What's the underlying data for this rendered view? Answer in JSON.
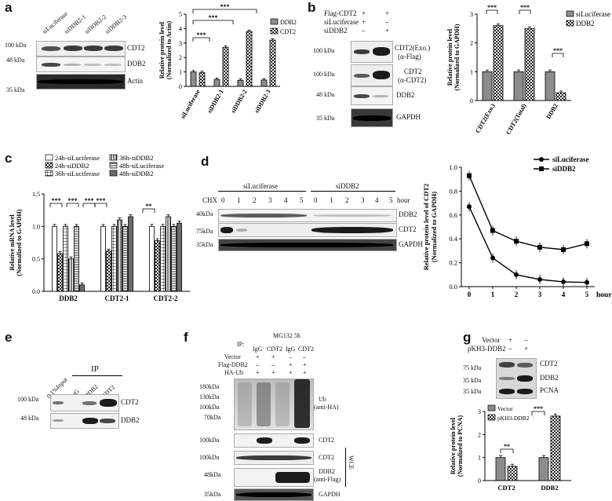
{
  "panel_labels": {
    "a": "a",
    "b": "b",
    "c": "c",
    "d": "d",
    "e": "e",
    "f": "f",
    "g": "g"
  },
  "sig": {
    "p3": "***",
    "p2": "**"
  },
  "a": {
    "lanes": [
      "siLuciferase",
      "siDDB2-1",
      "siDDB2-2",
      "siDDB2-3"
    ],
    "mw": [
      "100 kDa",
      "48 kDa",
      "35 kDa"
    ],
    "bands": [
      "CDT2",
      "DDB2",
      "Actin"
    ],
    "chart_data": {
      "type": "bar",
      "categories": [
        "siLuciferase",
        "siDDB2-1",
        "siDDB2-2",
        "siDDB2-3"
      ],
      "series": [
        {
          "name": "DDB2",
          "values": [
            1.0,
            0.48,
            0.42,
            0.44
          ]
        },
        {
          "name": "CDT2",
          "values": [
            0.95,
            2.7,
            3.8,
            3.2
          ]
        }
      ],
      "ylabel": "Relative protein level (Normalized to Actin)",
      "ylim": [
        0,
        5
      ],
      "yticks": [
        0,
        1,
        2,
        3,
        4,
        5
      ],
      "legend": "top-right"
    }
  },
  "b": {
    "rows": [
      "Flag-CDT2",
      "siLuciferase",
      "siDDB2"
    ],
    "signs": [
      [
        "+",
        "+"
      ],
      [
        "+",
        "–"
      ],
      [
        "–",
        "+"
      ]
    ],
    "mw": [
      "100 kDa",
      "100 kDa",
      "48 kDa",
      "35 kDa"
    ],
    "bands": [
      "CDT2(Exo.)",
      "(α-Flag)",
      "CDT2",
      "(α-CDT2)",
      "DDB2",
      "GAPDH"
    ],
    "chart_data": {
      "type": "bar",
      "categories": [
        "CDT2(Exo.)",
        "CDT2(Total)",
        "DDB2"
      ],
      "series": [
        {
          "name": "siLuciferase",
          "values": [
            1.0,
            1.0,
            1.0
          ]
        },
        {
          "name": "DDB2",
          "values": [
            2.6,
            2.5,
            0.27
          ]
        }
      ],
      "ylabel": "Relative protein level (Normalized to GAPDH)",
      "ylim": [
        0,
        3
      ],
      "yticks": [
        0,
        1,
        2,
        3
      ],
      "legend": "top-right"
    }
  },
  "c": {
    "chart_data": {
      "type": "bar",
      "categories": [
        "DDB2",
        "CDT2-1",
        "CDT2-2"
      ],
      "series": [
        {
          "name": "24h-siLuciferase",
          "values": [
            1.0,
            1.0,
            1.0
          ]
        },
        {
          "name": "24h-siDDB2",
          "values": [
            0.58,
            0.62,
            0.78
          ]
        },
        {
          "name": "36h-siLuciferase",
          "values": [
            1.0,
            1.0,
            1.0
          ]
        },
        {
          "name": "36h-siDDB2",
          "values": [
            0.5,
            1.1,
            1.15
          ]
        },
        {
          "name": "48h-siLuciferase",
          "values": [
            1.0,
            1.0,
            1.0
          ]
        },
        {
          "name": "48h-siDDB2",
          "values": [
            0.1,
            1.15,
            1.05
          ]
        }
      ],
      "ylabel": "Relative mRNA level (Normalized to GAPDH)",
      "ylim": [
        0,
        1.5
      ],
      "yticks": [
        "0.0",
        "0.5",
        "1.0",
        "1.5"
      ],
      "legend": "top"
    }
  },
  "d": {
    "cond": [
      "siLuciferase",
      "siDDB2"
    ],
    "chx": "CHX",
    "times": [
      "0",
      "1",
      "2",
      "3",
      "4",
      "5"
    ],
    "hour": "hour",
    "mw": [
      "40kDa",
      "75kDa",
      "35kDa"
    ],
    "bands": [
      "DDB2",
      "CDT2",
      "GAPDH"
    ],
    "chart_data": {
      "type": "line",
      "x": [
        0,
        1,
        2,
        3,
        4,
        5
      ],
      "series": [
        {
          "name": "siLuciferase",
          "values": [
            0.67,
            0.24,
            0.1,
            0.06,
            0.04,
            0.035
          ]
        },
        {
          "name": "siDDB2",
          "values": [
            0.93,
            0.47,
            0.38,
            0.33,
            0.31,
            0.36
          ]
        }
      ],
      "xlabel": "hours",
      "ylabel": "Relative protein level of CDT2 (Normalized to GAPDH)",
      "ylim": [
        0.0,
        1.0
      ],
      "yticks": [
        "0.0",
        "0.2",
        "0.4",
        "0.6",
        "0.8",
        "1.0"
      ],
      "legend": "top-right"
    }
  },
  "e": {
    "ip": "IP",
    "lanes": [
      "0.1%Input",
      "IgG",
      "DDB2",
      "CDT2"
    ],
    "mw": [
      "100 kDa",
      "48 kDa"
    ],
    "bands": [
      "CDT2",
      "DDB2"
    ]
  },
  "f": {
    "title": "MG132 5h",
    "ip": "IP:",
    "ip_lanes": [
      "IgG",
      "CDT2",
      "IgG",
      "CDT2"
    ],
    "rows": [
      "Vector",
      "Flag-DDB2",
      "HA-Ub"
    ],
    "signs": [
      [
        "+",
        "+",
        "–",
        "–"
      ],
      [
        "–",
        "–",
        "+",
        "+"
      ],
      [
        "+",
        "+",
        "+",
        "+"
      ]
    ],
    "mw": [
      "180kDa",
      "130kDa",
      "100kDa",
      "70kDa",
      "100kDa",
      "100kDa",
      "48kDa",
      "35kDa"
    ],
    "ub": "Ub",
    "ub2": "(anti-HA)",
    "bands": [
      "CDT2",
      "CDT2",
      "DDB2",
      "(anti-Flag)",
      "GAPDH"
    ],
    "wce": "WCE"
  },
  "g": {
    "rows": [
      "Vector",
      "pKH3-DDB2"
    ],
    "signs": [
      [
        "+",
        "–"
      ],
      [
        "–",
        "+"
      ]
    ],
    "mw": [
      "75 kDa",
      "35 kDa",
      "35 kDa"
    ],
    "bands": [
      "CDT2",
      "DDB2",
      "PCNA"
    ],
    "chart_data": {
      "type": "bar",
      "categories": [
        "CDT2",
        "DDB2"
      ],
      "series": [
        {
          "name": "Vector",
          "values": [
            1.0,
            1.0
          ]
        },
        {
          "name": "pKH3-DDB2",
          "values": [
            0.62,
            2.8
          ]
        }
      ],
      "ylabel": "Relative protein level (Normalized to PCNA)",
      "ylim": [
        0,
        3
      ],
      "yticks": [
        0,
        1,
        2,
        3
      ],
      "legend": "top-left"
    }
  }
}
